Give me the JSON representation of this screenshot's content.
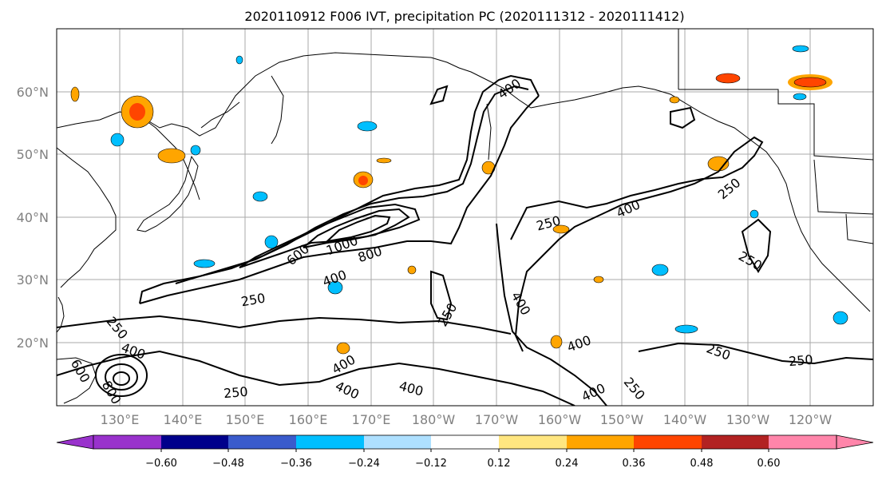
{
  "title": "2020110912 F006 IVT, precipitation PC (2020111312 - 2020111412)",
  "map": {
    "lat_labels": [
      "60°N",
      "50°N",
      "40°N",
      "30°N",
      "20°N"
    ],
    "lon_labels": [
      "130°E",
      "140°E",
      "150°E",
      "160°E",
      "170°E",
      "180°W",
      "170°W",
      "160°W",
      "150°W",
      "140°W",
      "130°W",
      "120°W"
    ],
    "contour_labels": [
      "400",
      "250",
      "250",
      "400",
      "1000",
      "800",
      "600",
      "400",
      "250",
      "250",
      "400",
      "250",
      "400",
      "250",
      "400",
      "250",
      "400",
      "400",
      "250",
      "250",
      "250",
      "400",
      "400",
      "600",
      "800"
    ],
    "grid": true
  },
  "colorbar": {
    "ticks": [
      "−0.60",
      "−0.48",
      "−0.36",
      "−0.24",
      "−0.12",
      "0.12",
      "0.24",
      "0.36",
      "0.48",
      "0.60"
    ],
    "colors": [
      "#9932cc",
      "#00008b",
      "#3a5bcc",
      "#00bfff",
      "#aee0ff",
      "#ffffff",
      "#ffe680",
      "#ffa500",
      "#ff4500",
      "#b22222",
      "#ff85aa"
    ]
  }
}
